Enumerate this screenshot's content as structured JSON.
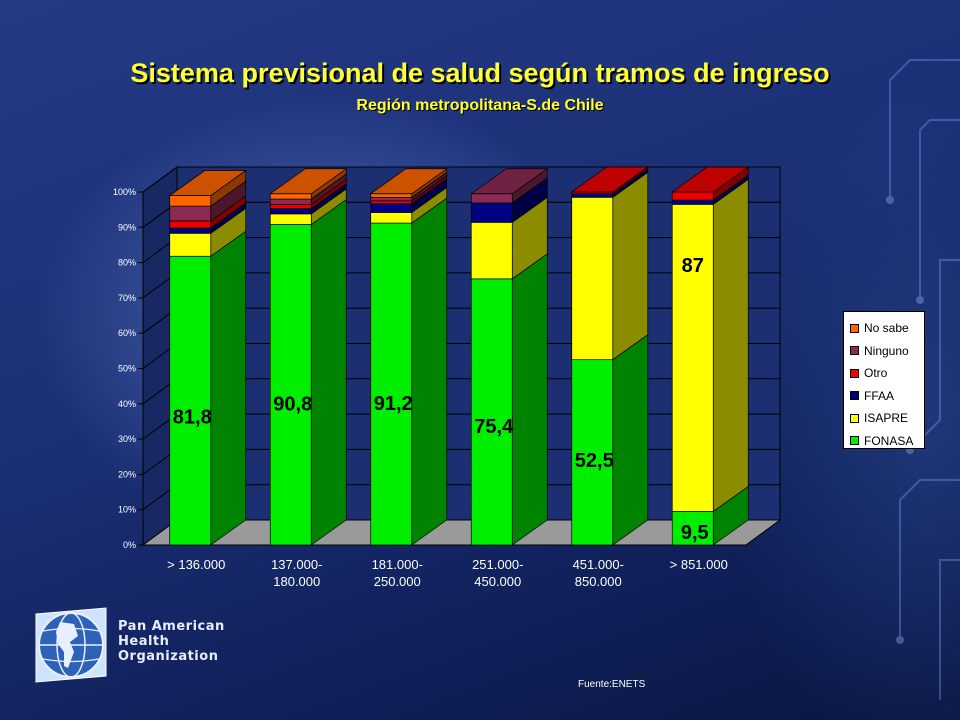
{
  "slide": {
    "title": "Sistema previsional de salud según tramos de ingreso",
    "subtitle": "Región metropolitana-S.de Chile",
    "organization_lines": [
      "Pan American",
      "Health",
      "Organization"
    ],
    "source": "Fuente:ENETS"
  },
  "colors": {
    "FONASA": "#00ee00",
    "ISAPRE": "#ffff00",
    "FFAA": "#000080",
    "Otro": "#ee0000",
    "Ninguno": "#8b2a52",
    "No sabe": "#ff6600",
    "chart_bg": "#1c2f73",
    "floor": "#9a9a9a"
  },
  "chart_data": {
    "type": "bar",
    "stacked": true,
    "three_d": true,
    "categories": [
      [
        "> 136.000"
      ],
      [
        "137.000-",
        "180.000"
      ],
      [
        "181.000-",
        "250.000"
      ],
      [
        "251.000-",
        "450.000"
      ],
      [
        "451.000-",
        "850.000"
      ],
      [
        "> 851.000"
      ]
    ],
    "series": [
      {
        "name": "FONASA",
        "values": [
          81.8,
          90.8,
          91.2,
          75.4,
          52.5,
          9.5
        ]
      },
      {
        "name": "ISAPRE",
        "values": [
          6.5,
          3.0,
          3.0,
          16.0,
          46.0,
          87.0
        ]
      },
      {
        "name": "FFAA",
        "values": [
          1.5,
          1.5,
          2.5,
          5.5,
          1.0,
          1.2
        ]
      },
      {
        "name": "Otro",
        "values": [
          2.0,
          1.2,
          0.8,
          0.0,
          0.5,
          2.3
        ]
      },
      {
        "name": "Ninguno",
        "values": [
          4.2,
          1.5,
          1.0,
          2.6,
          0.0,
          0.0
        ]
      },
      {
        "name": "No sabe",
        "values": [
          3.0,
          1.5,
          1.0,
          0.0,
          0.0,
          0.0
        ]
      }
    ],
    "data_labels": [
      {
        "category": 0,
        "series": "FONASA",
        "text": "81,8"
      },
      {
        "category": 1,
        "series": "FONASA",
        "text": "90,8"
      },
      {
        "category": 2,
        "series": "FONASA",
        "text": "91,2"
      },
      {
        "category": 3,
        "series": "FONASA",
        "text": "75,4"
      },
      {
        "category": 4,
        "series": "FONASA",
        "text": "52,5"
      },
      {
        "category": 5,
        "series": "FONASA",
        "text": "9,5"
      },
      {
        "category": 5,
        "series": "ISAPRE",
        "text": "87"
      }
    ],
    "y_ticks": [
      "0%",
      "10%",
      "20%",
      "30%",
      "40%",
      "50%",
      "60%",
      "70%",
      "80%",
      "90%",
      "100%"
    ],
    "ylim": [
      0,
      100
    ],
    "grid": true,
    "legend": {
      "position": "right",
      "entries": [
        "No sabe",
        "Ninguno",
        "Otro",
        "FFAA",
        "ISAPRE",
        "FONASA"
      ]
    }
  }
}
